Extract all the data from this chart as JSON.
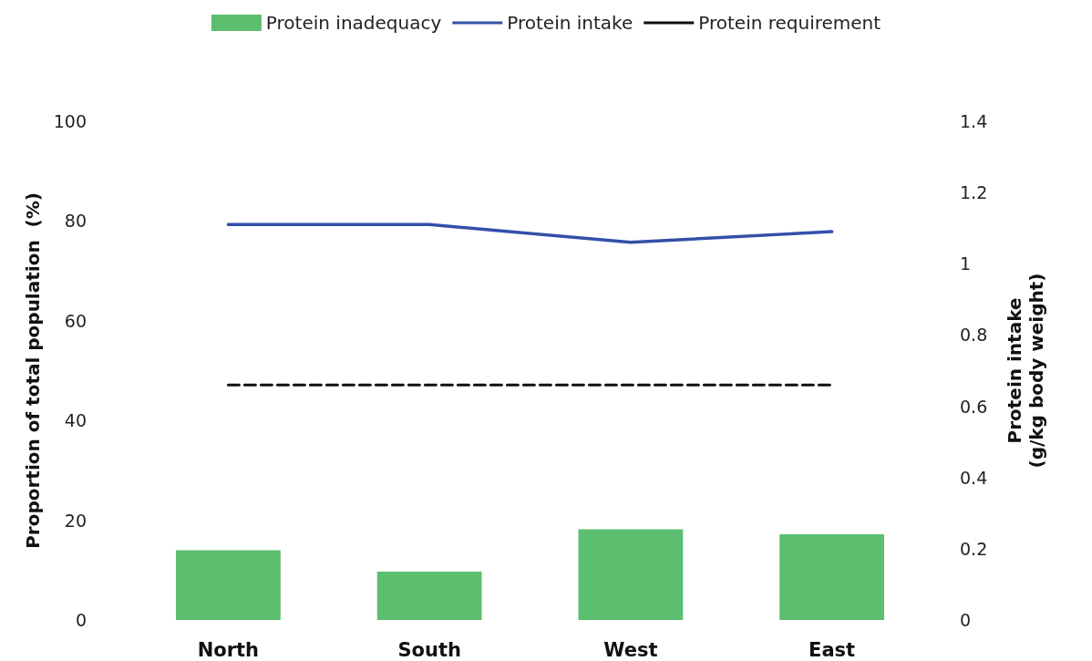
{
  "chart_data": {
    "type": "bar",
    "categories": [
      "North",
      "South",
      "West",
      "East"
    ],
    "series": [
      {
        "name": "Protein inadequacy",
        "color": "#5cbf6f",
        "values": [
          14.0,
          9.7,
          18.2,
          17.2
        ]
      },
      {
        "name": "Protein intake",
        "type": "line",
        "color": "#3350a8",
        "axis": "y2",
        "line_style": "solid",
        "values": [
          1.11,
          1.11,
          1.06,
          1.09
        ]
      },
      {
        "name": "Protein requirement",
        "type": "line",
        "color": "#111111",
        "axis": "y2",
        "line_style": "dashed",
        "values": [
          0.66,
          0.66,
          0.66,
          0.66
        ]
      }
    ],
    "ylabel": "Proportion of total population  (%)",
    "y2label": "Protein intake\n(g/kg body weight)",
    "ylim": [
      0,
      100
    ],
    "yticks": [
      0,
      20,
      40,
      60,
      80,
      100
    ],
    "y2lim": [
      0,
      1.4
    ],
    "y2ticks": [
      0,
      0.2,
      0.4,
      0.6,
      0.8,
      1,
      1.2,
      1.4
    ],
    "legend": "top",
    "grid": false,
    "marker": "none"
  }
}
